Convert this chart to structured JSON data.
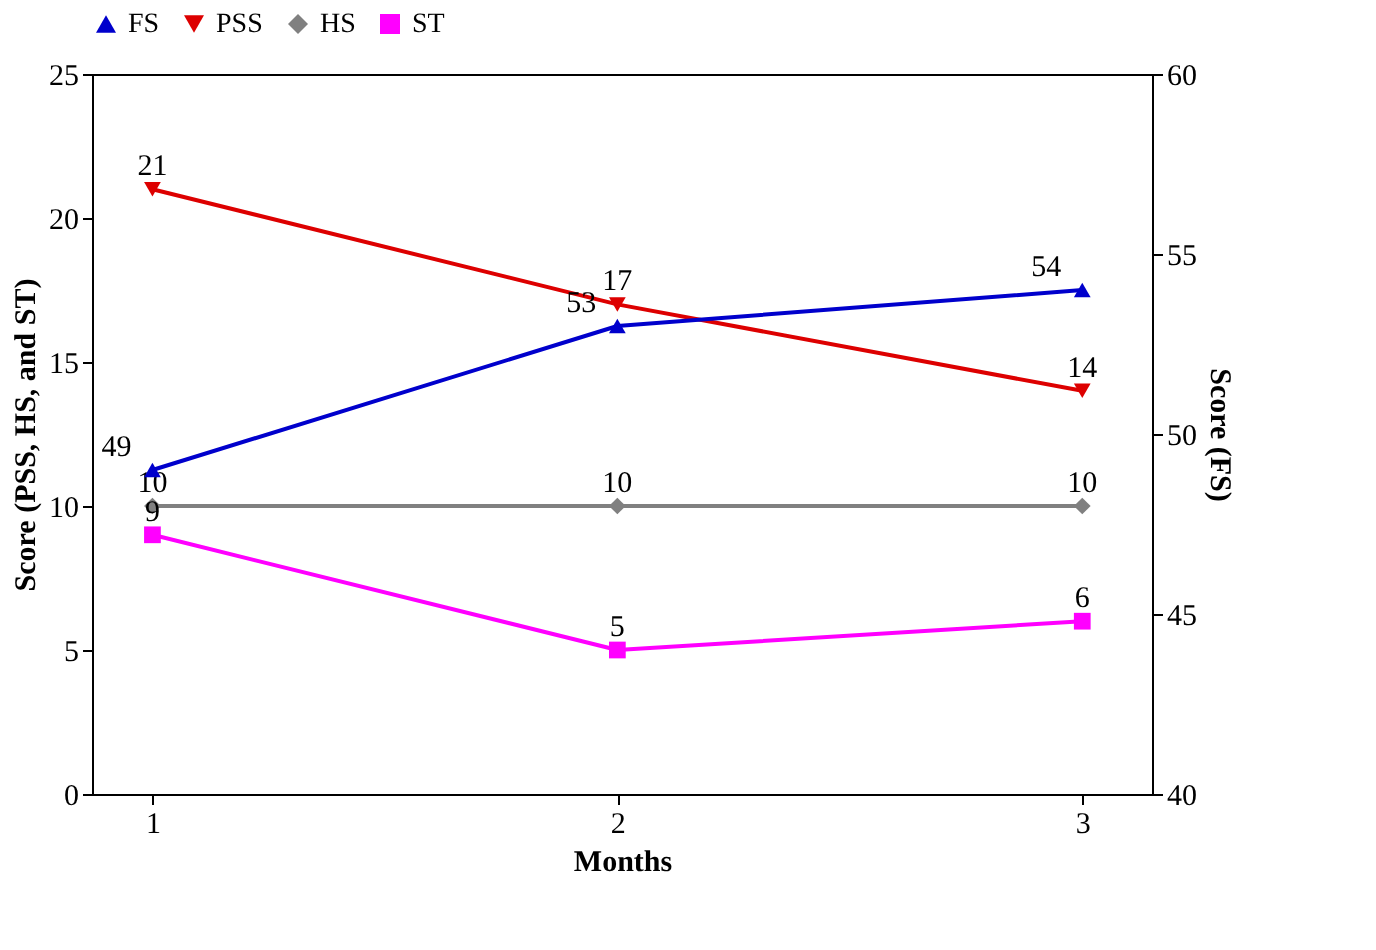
{
  "chart_data": {
    "type": "line",
    "xlabel": "Months",
    "ylabel": "Score (PSS, HS, and ST)",
    "y2label": "Score (FS)",
    "x": [
      1,
      2,
      3
    ],
    "xlim": [
      0.87,
      3.15
    ],
    "xticks": [
      1,
      2,
      3
    ],
    "ylim": [
      0,
      25
    ],
    "yticks": [
      0,
      5,
      10,
      15,
      20,
      25
    ],
    "y2lim": [
      40,
      60
    ],
    "y2ticks": [
      40,
      45,
      50,
      55,
      60
    ],
    "series": [
      {
        "name": "FS",
        "color": "#0000cc",
        "values": [
          49,
          53,
          54
        ],
        "axis": "y2",
        "marker": "triangle"
      },
      {
        "name": "PSS",
        "color": "#dd0000",
        "values": [
          21,
          17,
          14
        ],
        "marker": "triangle-down"
      },
      {
        "name": "HS",
        "color": "#808080",
        "values": [
          10,
          10,
          10
        ],
        "marker": "diamond"
      },
      {
        "name": "ST",
        "color": "#ff00ff",
        "values": [
          9,
          5,
          6
        ],
        "marker": "square"
      }
    ],
    "data_labels": true,
    "legend": "top",
    "grid": false
  }
}
